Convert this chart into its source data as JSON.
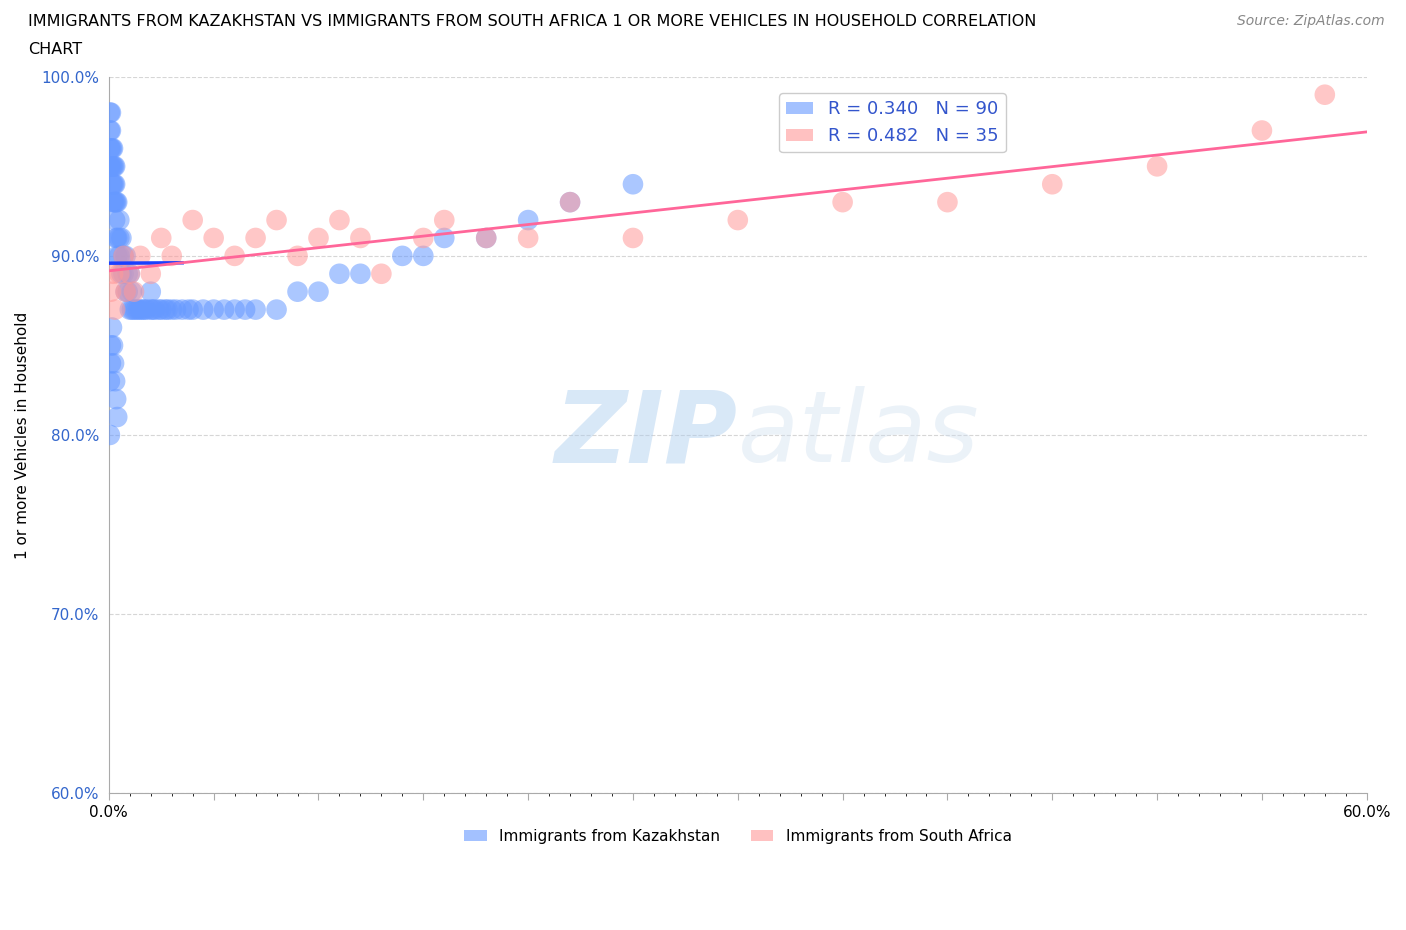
{
  "title_line1": "IMMIGRANTS FROM KAZAKHSTAN VS IMMIGRANTS FROM SOUTH AFRICA 1 OR MORE VEHICLES IN HOUSEHOLD CORRELATION",
  "title_line2": "CHART",
  "source": "Source: ZipAtlas.com",
  "ylabel": "1 or more Vehicles in Household",
  "xlim": [
    0.0,
    60.0
  ],
  "ylim": [
    60.0,
    100.0
  ],
  "xtick_labels": [
    "0.0%",
    "",
    "",
    "",
    "",
    "60.0%"
  ],
  "ytick_labels": [
    "60.0%",
    "70.0%",
    "80.0%",
    "90.0%",
    "100.0%"
  ],
  "kazakhstan_color": "#6699ff",
  "south_africa_color": "#ff9999",
  "trendline_kaz_color": "#1a3fff",
  "trendline_sa_color": "#ff6699",
  "R_kaz": 0.34,
  "N_kaz": 90,
  "R_sa": 0.482,
  "N_sa": 35,
  "watermark_zip": "ZIP",
  "watermark_atlas": "atlas",
  "background_color": "#ffffff",
  "kaz_x": [
    0.05,
    0.05,
    0.05,
    0.05,
    0.1,
    0.1,
    0.1,
    0.1,
    0.15,
    0.15,
    0.15,
    0.2,
    0.2,
    0.2,
    0.2,
    0.25,
    0.25,
    0.25,
    0.3,
    0.3,
    0.3,
    0.3,
    0.35,
    0.35,
    0.4,
    0.4,
    0.4,
    0.5,
    0.5,
    0.5,
    0.6,
    0.6,
    0.7,
    0.7,
    0.8,
    0.8,
    0.9,
    0.9,
    1.0,
    1.0,
    1.1,
    1.1,
    1.2,
    1.3,
    1.4,
    1.5,
    1.6,
    1.7,
    1.8,
    2.0,
    2.0,
    2.1,
    2.2,
    2.4,
    2.5,
    2.7,
    2.8,
    3.0,
    3.2,
    3.5,
    3.8,
    4.0,
    4.5,
    5.0,
    5.5,
    6.0,
    6.5,
    7.0,
    8.0,
    9.0,
    10.0,
    11.0,
    12.0,
    14.0,
    15.0,
    16.0,
    18.0,
    20.0,
    22.0,
    25.0,
    0.05,
    0.05,
    0.1,
    0.1,
    0.15,
    0.2,
    0.25,
    0.3,
    0.35,
    0.4
  ],
  "kaz_y": [
    95.0,
    96.0,
    97.0,
    98.0,
    95.0,
    96.0,
    97.0,
    98.0,
    94.0,
    95.0,
    96.0,
    93.0,
    94.0,
    95.0,
    96.0,
    93.0,
    94.0,
    95.0,
    92.0,
    93.0,
    94.0,
    95.0,
    91.0,
    93.0,
    90.0,
    91.0,
    93.0,
    90.0,
    91.0,
    92.0,
    89.0,
    91.0,
    89.0,
    90.0,
    88.0,
    90.0,
    88.0,
    89.0,
    87.0,
    89.0,
    87.0,
    88.0,
    87.0,
    87.0,
    87.0,
    87.0,
    87.0,
    87.0,
    87.0,
    87.0,
    88.0,
    87.0,
    87.0,
    87.0,
    87.0,
    87.0,
    87.0,
    87.0,
    87.0,
    87.0,
    87.0,
    87.0,
    87.0,
    87.0,
    87.0,
    87.0,
    87.0,
    87.0,
    87.0,
    88.0,
    88.0,
    89.0,
    89.0,
    90.0,
    90.0,
    91.0,
    91.0,
    92.0,
    93.0,
    94.0,
    80.0,
    83.0,
    84.0,
    85.0,
    86.0,
    85.0,
    84.0,
    83.0,
    82.0,
    81.0
  ],
  "sa_x": [
    0.1,
    0.2,
    0.3,
    0.5,
    0.7,
    0.8,
    1.0,
    1.2,
    1.5,
    2.0,
    2.5,
    3.0,
    4.0,
    5.0,
    6.0,
    7.0,
    8.0,
    9.0,
    10.0,
    11.0,
    12.0,
    13.0,
    15.0,
    16.0,
    18.0,
    20.0,
    22.0,
    25.0,
    30.0,
    35.0,
    40.0,
    45.0,
    50.0,
    55.0,
    58.0
  ],
  "sa_y": [
    88.0,
    89.0,
    87.0,
    89.0,
    90.0,
    88.0,
    89.0,
    88.0,
    90.0,
    89.0,
    91.0,
    90.0,
    92.0,
    91.0,
    90.0,
    91.0,
    92.0,
    90.0,
    91.0,
    92.0,
    91.0,
    89.0,
    91.0,
    92.0,
    91.0,
    91.0,
    93.0,
    91.0,
    92.0,
    93.0,
    93.0,
    94.0,
    95.0,
    97.0,
    99.0
  ]
}
